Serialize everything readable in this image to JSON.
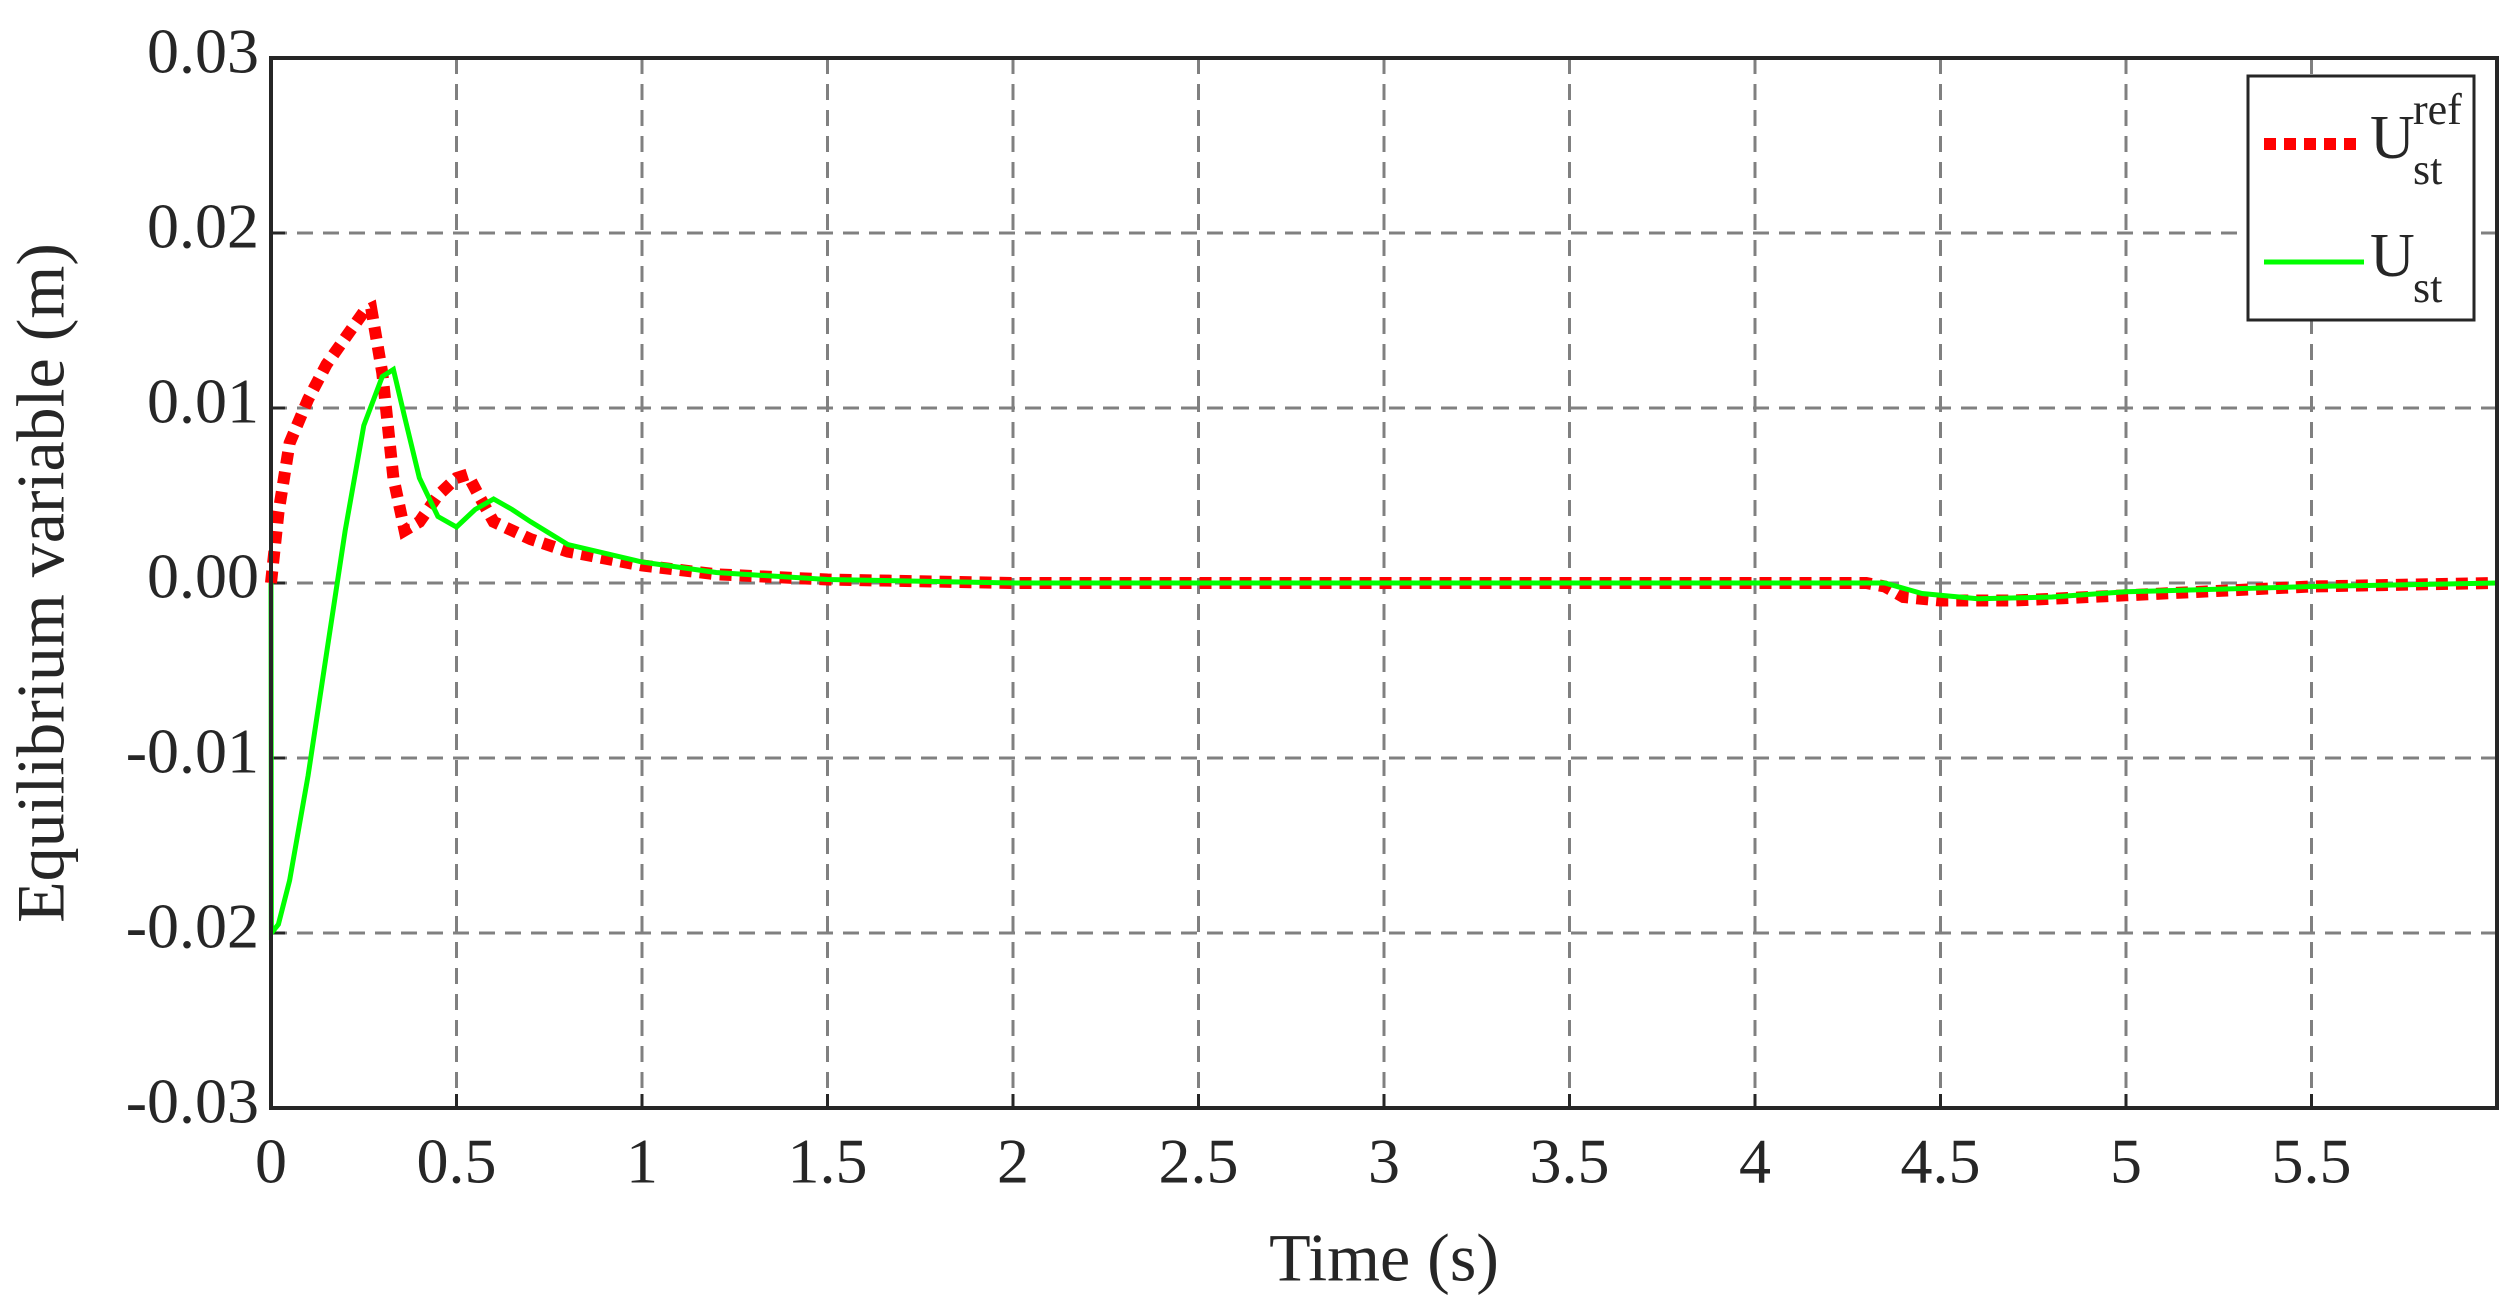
{
  "chart_data": {
    "type": "line",
    "xlabel": "Time (s)",
    "ylabel": "Equilibrium variable (m)",
    "xlim": [
      0,
      6
    ],
    "ylim": [
      -0.03,
      0.03
    ],
    "xticks": [
      0,
      0.5,
      1,
      1.5,
      2,
      2.5,
      3,
      3.5,
      4,
      4.5,
      5,
      5.5
    ],
    "yticks": [
      -0.03,
      -0.02,
      -0.01,
      {
        "value": 0,
        "label": "0.00"
      },
      0.01,
      0.02,
      0.03
    ],
    "grid": true,
    "legend": "upper right",
    "series": [
      {
        "name": "U",
        "superscript": "ref",
        "subscript": "st",
        "color": "#ff0000",
        "style": "dotted",
        "x": [
          0,
          0.02,
          0.05,
          0.1,
          0.15,
          0.2,
          0.25,
          0.27,
          0.3,
          0.33,
          0.36,
          0.4,
          0.45,
          0.5,
          0.53,
          0.56,
          0.6,
          0.7,
          0.8,
          1.0,
          1.2,
          1.5,
          2,
          3,
          4,
          4.3,
          4.35,
          4.4,
          4.5,
          4.7,
          5,
          5.5,
          6
        ],
        "values": [
          0,
          0.004,
          0.008,
          0.0105,
          0.0125,
          0.014,
          0.0155,
          0.0157,
          0.012,
          0.006,
          0.003,
          0.0035,
          0.005,
          0.006,
          0.0062,
          0.005,
          0.0035,
          0.0025,
          0.0018,
          0.001,
          0.0005,
          0.0002,
          0,
          0,
          0,
          0,
          -0.0002,
          -0.0008,
          -0.001,
          -0.001,
          -0.0007,
          -0.0002,
          0
        ]
      },
      {
        "name": "U",
        "subscript": "st",
        "color": "#00ff00",
        "style": "solid",
        "x": [
          0,
          0.001,
          0.02,
          0.05,
          0.1,
          0.15,
          0.2,
          0.25,
          0.3,
          0.33,
          0.36,
          0.4,
          0.45,
          0.5,
          0.55,
          0.6,
          0.65,
          0.7,
          0.8,
          1.0,
          1.2,
          1.5,
          2,
          3,
          4,
          4.35,
          4.45,
          4.6,
          4.8,
          5,
          5.5,
          6
        ],
        "values": [
          0,
          -0.02,
          -0.0195,
          -0.017,
          -0.011,
          -0.004,
          0.003,
          0.009,
          0.0118,
          0.0122,
          0.0095,
          0.006,
          0.0038,
          0.0032,
          0.0042,
          0.0048,
          0.0042,
          0.0035,
          0.0022,
          0.0012,
          0.0006,
          0.0002,
          0,
          0,
          0,
          0,
          -0.0006,
          -0.0009,
          -0.0008,
          -0.0005,
          -0.0002,
          0
        ]
      }
    ]
  }
}
